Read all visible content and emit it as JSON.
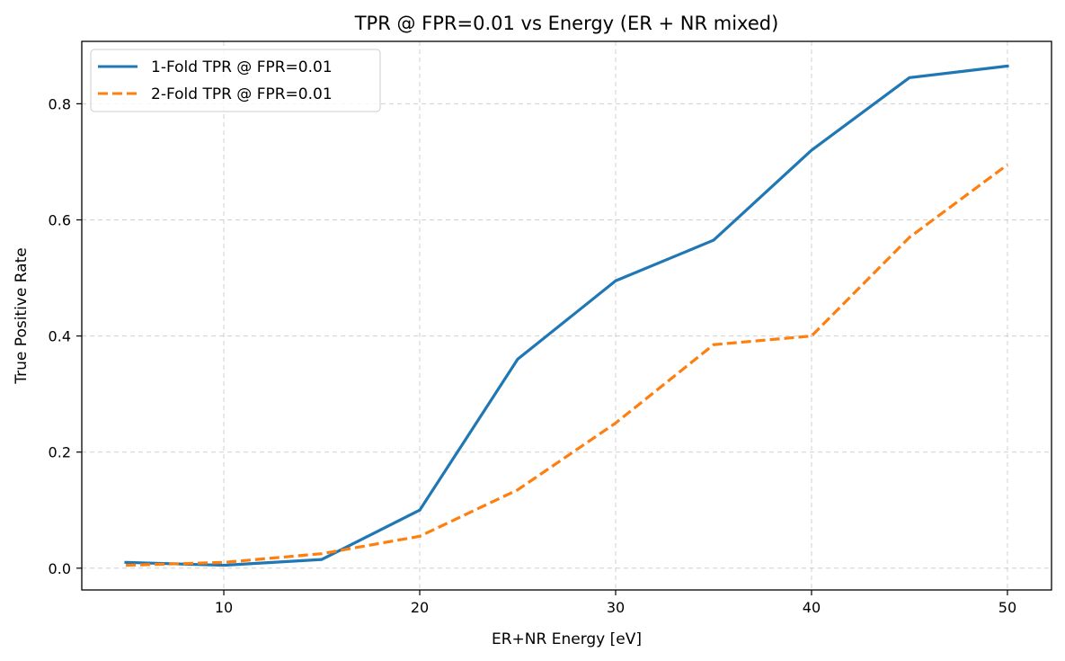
{
  "chart_data": {
    "type": "line",
    "title": "TPR @ FPR=0.01 vs Energy (ER + NR mixed)",
    "xlabel": "ER+NR Energy [eV]",
    "ylabel": "True Positive Rate",
    "xlim": [
      2.75,
      52.25
    ],
    "ylim": [
      -0.0375,
      0.9075
    ],
    "xticks": [
      10,
      20,
      30,
      40,
      50
    ],
    "yticks": [
      0.0,
      0.2,
      0.4,
      0.6,
      0.8
    ],
    "xtick_labels": [
      "10",
      "20",
      "30",
      "40",
      "50"
    ],
    "ytick_labels": [
      "0.0",
      "0.2",
      "0.4",
      "0.6",
      "0.8"
    ],
    "grid": true,
    "legend_position": "upper-left",
    "x": [
      5,
      10,
      15,
      20,
      25,
      30,
      35,
      40,
      45,
      50
    ],
    "series": [
      {
        "name": "1-Fold TPR @ FPR=0.01",
        "style": "solid",
        "color": "#1f77b4",
        "values": [
          0.01,
          0.005,
          0.015,
          0.1,
          0.36,
          0.495,
          0.565,
          0.72,
          0.845,
          0.865
        ]
      },
      {
        "name": "2-Fold TPR @ FPR=0.01",
        "style": "dashed",
        "color": "#ff7f0e",
        "values": [
          0.005,
          0.01,
          0.025,
          0.055,
          0.135,
          0.25,
          0.385,
          0.4,
          0.57,
          0.695
        ]
      }
    ]
  }
}
